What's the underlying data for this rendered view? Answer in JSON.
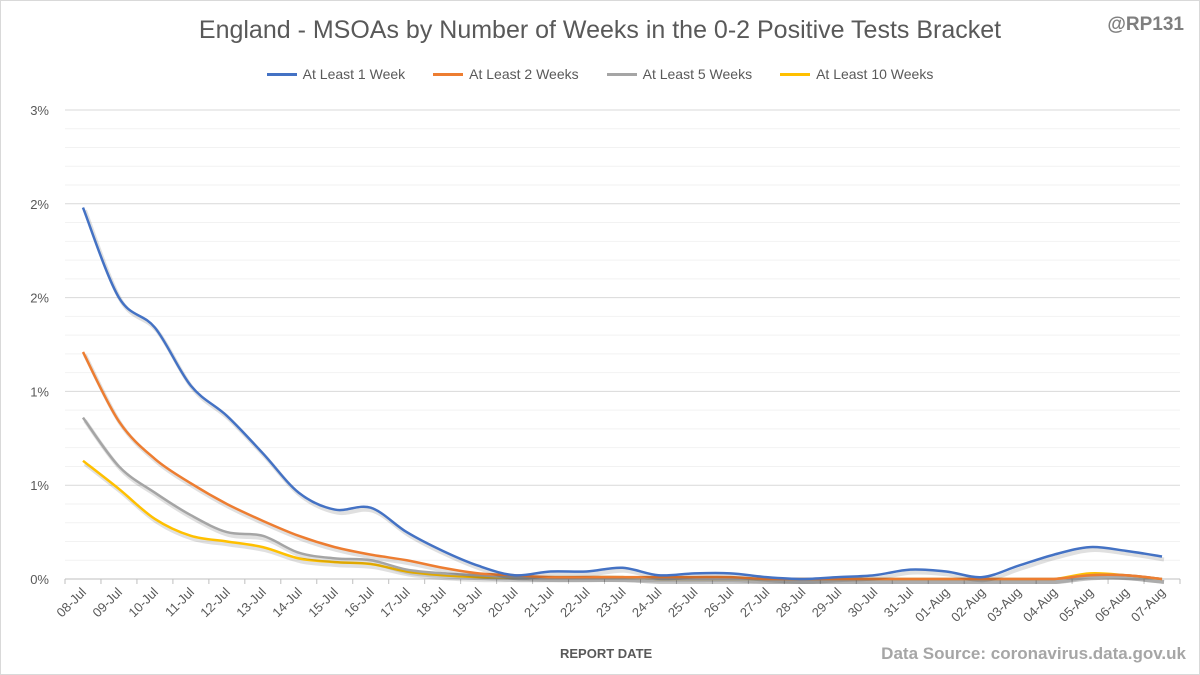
{
  "chart_data": {
    "type": "line",
    "title": "England - MSOAs by Number of Weeks in the 0-2 Positive Tests Bracket",
    "watermark": "@RP131",
    "xlabel": "REPORT DATE",
    "ylabel": "",
    "source": "Data Source: coronavirus.data.gov.uk",
    "ylim": [
      0,
      2.5
    ],
    "yticks": [
      0,
      0.5,
      1.0,
      1.5,
      2.0,
      2.5
    ],
    "ytick_labels": [
      "0%",
      "1%",
      "1%",
      "2%",
      "2%",
      "3%"
    ],
    "grid": true,
    "legend_position": "top",
    "categories": [
      "08-Jul",
      "09-Jul",
      "10-Jul",
      "11-Jul",
      "12-Jul",
      "13-Jul",
      "14-Jul",
      "15-Jul",
      "16-Jul",
      "17-Jul",
      "18-Jul",
      "19-Jul",
      "20-Jul",
      "21-Jul",
      "22-Jul",
      "23-Jul",
      "24-Jul",
      "25-Jul",
      "26-Jul",
      "27-Jul",
      "28-Jul",
      "29-Jul",
      "30-Jul",
      "31-Jul",
      "01-Aug",
      "02-Aug",
      "03-Aug",
      "04-Aug",
      "05-Aug",
      "06-Aug",
      "07-Aug"
    ],
    "series": [
      {
        "name": "At Least 1 Week",
        "color": "#4472c4",
        "values": [
          1.98,
          1.5,
          1.34,
          1.03,
          0.87,
          0.67,
          0.46,
          0.37,
          0.38,
          0.25,
          0.15,
          0.07,
          0.02,
          0.04,
          0.04,
          0.06,
          0.02,
          0.03,
          0.03,
          0.01,
          0.0,
          0.01,
          0.02,
          0.05,
          0.04,
          0.01,
          0.07,
          0.13,
          0.17,
          0.15,
          0.12
        ]
      },
      {
        "name": "At Least 2 Weeks",
        "color": "#ed7d31",
        "values": [
          1.21,
          0.84,
          0.64,
          0.51,
          0.4,
          0.31,
          0.23,
          0.17,
          0.13,
          0.1,
          0.06,
          0.03,
          0.02,
          0.01,
          0.01,
          0.01,
          0.01,
          0.01,
          0.01,
          0.0,
          0.0,
          0.0,
          0.0,
          0.0,
          0.0,
          0.0,
          0.0,
          0.0,
          0.02,
          0.02,
          0.0
        ]
      },
      {
        "name": "At Least 5 Weeks",
        "color": "#a5a5a5",
        "values": [
          0.86,
          0.6,
          0.46,
          0.34,
          0.25,
          0.23,
          0.14,
          0.11,
          0.1,
          0.05,
          0.03,
          0.02,
          0.01,
          0.01,
          0.01,
          0.01,
          0.0,
          0.0,
          0.0,
          0.0,
          0.0,
          0.0,
          0.0,
          0.0,
          0.0,
          0.0,
          0.0,
          0.0,
          0.02,
          0.02,
          0.0
        ]
      },
      {
        "name": "At Least 10 Weeks",
        "color": "#ffc000",
        "values": [
          0.63,
          0.48,
          0.32,
          0.23,
          0.2,
          0.17,
          0.11,
          0.09,
          0.08,
          0.04,
          0.02,
          0.01,
          0.01,
          0.01,
          0.01,
          0.01,
          0.0,
          0.0,
          0.0,
          0.0,
          0.0,
          0.0,
          0.0,
          0.0,
          0.0,
          0.0,
          0.0,
          0.0,
          0.03,
          0.02,
          0.0
        ]
      }
    ]
  }
}
